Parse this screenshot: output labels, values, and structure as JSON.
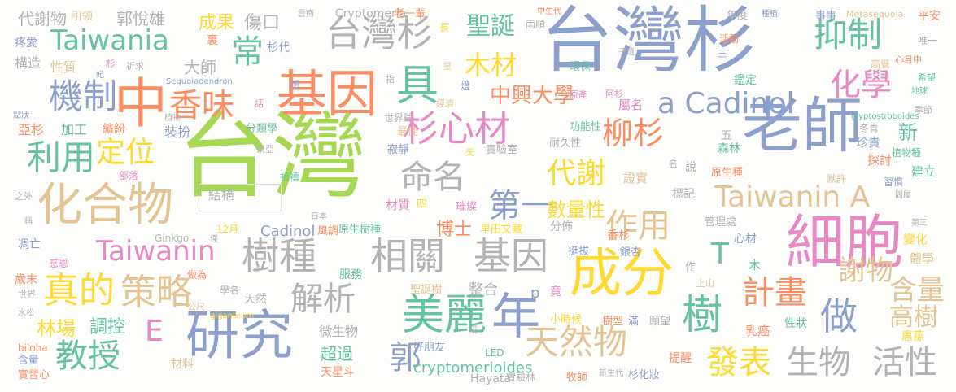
{
  "palette": {
    "green": "#a6d854",
    "blue": "#8da0cb",
    "orange": "#fc8d62",
    "teal": "#66c2a5",
    "pink": "#e78ac3",
    "yellow": "#ffd92f",
    "tan": "#e5c494",
    "gray": "#b3b3b3"
  },
  "words": [
    {
      "text": "台灣",
      "color": "#a6d854"
    },
    {
      "text": "台灣杉",
      "color": "#8da0cb"
    },
    {
      "text": "老師",
      "color": "#8da0cb"
    },
    {
      "text": "基因",
      "color": "#fc8d62"
    },
    {
      "text": "中",
      "color": "#fc8d62"
    },
    {
      "text": "細胞",
      "color": "#e78ac3"
    },
    {
      "text": "成分",
      "color": "#ffd92f"
    },
    {
      "text": "研究",
      "color": "#8da0cb"
    },
    {
      "text": "化合物",
      "color": "#e5c494"
    },
    {
      "text": "Taiwania",
      "color": "#66c2a5"
    },
    {
      "text": "台灣杉",
      "color": "#b3b3b3"
    },
    {
      "text": "a Cadinol",
      "color": "#8da0cb"
    },
    {
      "text": "Taiwanin A",
      "color": "#e5c494"
    },
    {
      "text": "Taiwanin",
      "color": "#e78ac3"
    },
    {
      "text": "樹種",
      "color": "#b3b3b3"
    },
    {
      "text": "相關",
      "color": "#b3b3b3"
    },
    {
      "text": "基因",
      "color": "#b3b3b3"
    },
    {
      "text": "年",
      "color": "#8da0cb"
    },
    {
      "text": "美麗",
      "color": "#66c2a5"
    },
    {
      "text": "杉心材",
      "color": "#e78ac3"
    },
    {
      "text": "具",
      "color": "#66c2a5"
    },
    {
      "text": "常",
      "color": "#66c2a5"
    },
    {
      "text": "抑制",
      "color": "#66c2a5"
    },
    {
      "text": "化學",
      "color": "#e78ac3"
    },
    {
      "text": "機制",
      "color": "#8da0cb"
    },
    {
      "text": "香味",
      "color": "#fc8d62"
    },
    {
      "text": "利用",
      "color": "#66c2a5"
    },
    {
      "text": "定位",
      "color": "#ffd92f"
    },
    {
      "text": "代謝",
      "color": "#ffd92f"
    },
    {
      "text": "柳杉",
      "color": "#fc8d62"
    },
    {
      "text": "命名",
      "color": "#b3b3b3"
    },
    {
      "text": "第一",
      "color": "#8da0cb"
    },
    {
      "text": "作用",
      "color": "#e5c494"
    },
    {
      "text": "策略",
      "color": "#e5c494"
    },
    {
      "text": "真的",
      "color": "#ffd92f"
    },
    {
      "text": "解析",
      "color": "#b3b3b3"
    },
    {
      "text": "教授",
      "color": "#66c2a5"
    },
    {
      "text": "天然物",
      "color": "#e5c494"
    },
    {
      "text": "郭",
      "color": "#8da0cb"
    },
    {
      "text": "發表",
      "color": "#ffd92f"
    },
    {
      "text": "生物",
      "color": "#b3b3b3"
    },
    {
      "text": "活性",
      "color": "#b3b3b3"
    },
    {
      "text": "做",
      "color": "#8da0cb"
    },
    {
      "text": "樹",
      "color": "#66c2a5"
    },
    {
      "text": "計畫",
      "color": "#fc8d62"
    },
    {
      "text": "謝物",
      "color": "#e5c494"
    },
    {
      "text": "含量",
      "color": "#e5c494"
    },
    {
      "text": "高樹",
      "color": "#e5c494"
    },
    {
      "text": "T",
      "color": "#66c2a5"
    },
    {
      "text": "E",
      "color": "#e78ac3"
    },
    {
      "text": "木材",
      "color": "#ffd92f"
    },
    {
      "text": "聖誕",
      "color": "#66c2a5"
    },
    {
      "text": "中興大學",
      "color": "#fc8d62"
    },
    {
      "text": "郭悅雄",
      "color": "#b3b3b3"
    },
    {
      "text": "代謝物",
      "color": "#b3b3b3"
    },
    {
      "text": "成果",
      "color": "#ffd92f"
    },
    {
      "text": "傷口",
      "color": "#b3b3b3"
    },
    {
      "text": "林場",
      "color": "#ffd92f"
    },
    {
      "text": "調控",
      "color": "#66c2a5"
    },
    {
      "text": "數量性",
      "color": "#ffd92f"
    },
    {
      "text": "博士",
      "color": "#fc8d62"
    },
    {
      "text": "cryptomerioides",
      "color": "#66c2a5"
    },
    {
      "text": "Cadinol",
      "color": "#8da0cb"
    },
    {
      "text": "Cryptomeria",
      "color": "#b3b3b3"
    },
    {
      "text": "Hayata",
      "color": "#b3b3b3"
    },
    {
      "text": "Ginkgo",
      "color": "#b3b3b3"
    },
    {
      "text": "Metasequoia",
      "color": "#e5c494"
    },
    {
      "text": "Sequoiadendron",
      "color": "#8da0cb"
    },
    {
      "text": "glyptostroboides",
      "color": "#66c2a5"
    },
    {
      "text": "giganteum",
      "color": "#ffd92f"
    },
    {
      "text": "biloba",
      "color": "#fc8d62"
    },
    {
      "text": "LED",
      "color": "#66c2a5"
    },
    {
      "text": "12月",
      "color": "#ffd92f"
    },
    {
      "text": "疼愛",
      "color": "#8da0cb"
    },
    {
      "text": "構造",
      "color": "#b3b3b3"
    },
    {
      "text": "性質",
      "color": "#e5c494"
    },
    {
      "text": "亞杉",
      "color": "#fc8d62"
    },
    {
      "text": "加工",
      "color": "#66c2a5"
    },
    {
      "text": "繽紛",
      "color": "#fc8d62"
    },
    {
      "text": "裝扮",
      "color": "#8da0cb"
    },
    {
      "text": "分類學",
      "color": "#66c2a5"
    },
    {
      "text": "結構",
      "color": "#b3b3b3"
    },
    {
      "text": "部落",
      "color": "#e78ac3"
    },
    {
      "text": "祈禱",
      "color": "#66c2a5"
    },
    {
      "text": "大師",
      "color": "#b3b3b3"
    },
    {
      "text": "杉代",
      "color": "#8da0cb"
    },
    {
      "text": "引領",
      "color": "#e5c494"
    },
    {
      "text": "老一輩",
      "color": "#fc8d62"
    },
    {
      "text": "長",
      "color": "#ffd92f"
    },
    {
      "text": "雨順",
      "color": "#b3b3b3"
    },
    {
      "text": "年度",
      "color": "#b3b3b3"
    },
    {
      "text": "事事",
      "color": "#8da0cb"
    },
    {
      "text": "平安",
      "color": "#fc8d62"
    },
    {
      "text": "唯一",
      "color": "#b3b3b3"
    },
    {
      "text": "高聳",
      "color": "#e5c494"
    },
    {
      "text": "心目中",
      "color": "#fc8d62"
    },
    {
      "text": "希望",
      "color": "#66c2a5"
    },
    {
      "text": "鑑定",
      "color": "#66c2a5"
    },
    {
      "text": "環保",
      "color": "#66c2a5"
    },
    {
      "text": "活動",
      "color": "#fc8d62"
    },
    {
      "text": "三",
      "color": "#8da0cb"
    },
    {
      "text": "祈求",
      "color": "#b3b3b3"
    },
    {
      "text": "屬名",
      "color": "#e78ac3"
    },
    {
      "text": "阿杉",
      "color": "#e78ac3"
    },
    {
      "text": "原產",
      "color": "#e78ac3"
    },
    {
      "text": "實驗室",
      "color": "#b3b3b3"
    },
    {
      "text": "功能性",
      "color": "#66c2a5"
    },
    {
      "text": "耐久性",
      "color": "#b3b3b3"
    },
    {
      "text": "最佳",
      "color": "#e5c494"
    },
    {
      "text": "世界爺",
      "color": "#b3b3b3"
    },
    {
      "text": "經濟",
      "color": "#e5c494"
    },
    {
      "text": "寂靜",
      "color": "#8da0cb"
    },
    {
      "text": "天",
      "color": "#ffd92f"
    },
    {
      "text": "燈",
      "color": "#8da0cb"
    },
    {
      "text": "想",
      "color": "#8da0cb"
    },
    {
      "text": "指",
      "color": "#b3b3b3"
    },
    {
      "text": "話",
      "color": "#e78ac3"
    },
    {
      "text": "植物",
      "color": "#b3b3b3"
    },
    {
      "text": "東亞",
      "color": "#b3b3b3"
    },
    {
      "text": "新",
      "color": "#66c2a5"
    },
    {
      "text": "珍貴",
      "color": "#8da0cb"
    },
    {
      "text": "冬青",
      "color": "#b3b3b3"
    },
    {
      "text": "植物種",
      "color": "#66c2a5"
    },
    {
      "text": "季節",
      "color": "#b3b3b3"
    },
    {
      "text": "森林",
      "color": "#66c2a5"
    },
    {
      "text": "五",
      "color": "#b3b3b3"
    },
    {
      "text": "探討",
      "color": "#fc8d62"
    },
    {
      "text": "建立",
      "color": "#66c2a5"
    },
    {
      "text": "習慣",
      "color": "#8da0cb"
    },
    {
      "text": "原生種",
      "color": "#fc8d62"
    },
    {
      "text": "默許",
      "color": "#e5c494"
    },
    {
      "text": "說",
      "color": "#b3b3b3"
    },
    {
      "text": "名",
      "color": "#b3b3b3"
    },
    {
      "text": "證實",
      "color": "#e5c494"
    },
    {
      "text": "標記",
      "color": "#b3b3b3"
    },
    {
      "text": "分佈",
      "color": "#b3b3b3"
    },
    {
      "text": "香杉",
      "color": "#fc8d62"
    },
    {
      "text": "心材",
      "color": "#8da0cb"
    },
    {
      "text": "管理處",
      "color": "#b3b3b3"
    },
    {
      "text": "木",
      "color": "#66c2a5"
    },
    {
      "text": "作",
      "color": "#b3b3b3"
    },
    {
      "text": "變化",
      "color": "#ffd92f"
    },
    {
      "text": "體學",
      "color": "#e5c494"
    },
    {
      "text": "原生樹種",
      "color": "#66c2a5"
    },
    {
      "text": "早田文藏",
      "color": "#ffd92f"
    },
    {
      "text": "材質",
      "color": "#e78ac3"
    },
    {
      "text": "四",
      "color": "#ffd92f"
    },
    {
      "text": "璀燦",
      "color": "#e78ac3"
    },
    {
      "text": "風調",
      "color": "#fc8d62"
    },
    {
      "text": "服務",
      "color": "#66c2a5"
    },
    {
      "text": "挺拔",
      "color": "#8da0cb"
    },
    {
      "text": "銀杏",
      "color": "#8da0cb"
    },
    {
      "text": "整合",
      "color": "#b3b3b3"
    },
    {
      "text": "p",
      "color": "#8da0cb"
    },
    {
      "text": "竟",
      "color": "#e78ac3"
    },
    {
      "text": "上山",
      "color": "#e5c494"
    },
    {
      "text": "聖誕樹",
      "color": "#e5c494"
    },
    {
      "text": "小時候",
      "color": "#ffd92f"
    },
    {
      "text": "樹型",
      "color": "#fc8d62"
    },
    {
      "text": "滿",
      "color": "#8da0cb"
    },
    {
      "text": "願望",
      "color": "#b3b3b3"
    },
    {
      "text": "乳癌",
      "color": "#fc8d62"
    },
    {
      "text": "性狀",
      "color": "#66c2a5"
    },
    {
      "text": "惠蓀",
      "color": "#ffd92f"
    },
    {
      "text": "微生物",
      "color": "#b3b3b3"
    },
    {
      "text": "超過",
      "color": "#66c2a5"
    },
    {
      "text": "成",
      "color": "#b3b3b3"
    },
    {
      "text": "好朋友",
      "color": "#8da0cb"
    },
    {
      "text": "天星斗",
      "color": "#fc8d62"
    },
    {
      "text": "實驗林",
      "color": "#b3b3b3"
    },
    {
      "text": "牧師",
      "color": "#fc8d62"
    },
    {
      "text": "新生代",
      "color": "#b3b3b3"
    },
    {
      "text": "杉化妝",
      "color": "#8da0cb"
    },
    {
      "text": "提醒",
      "color": "#fc8d62"
    },
    {
      "text": "材料",
      "color": "#e5c494"
    },
    {
      "text": "含量",
      "color": "#8da0cb"
    },
    {
      "text": "實習心",
      "color": "#fc8d62"
    },
    {
      "text": "歲末",
      "color": "#fc8d62"
    },
    {
      "text": "凋亡",
      "color": "#8da0cb"
    },
    {
      "text": "感恩",
      "color": "#e78ac3"
    },
    {
      "text": "世界",
      "color": "#b3b3b3"
    },
    {
      "text": "學名",
      "color": "#b3b3b3"
    },
    {
      "text": "天然",
      "color": "#b3b3b3"
    },
    {
      "text": "公尺",
      "color": "#e5c494"
    },
    {
      "text": "做為",
      "color": "#fc8d62"
    },
    {
      "text": "點狀",
      "color": "#8da0cb"
    },
    {
      "text": "之外",
      "color": "#b3b3b3"
    },
    {
      "text": "日本",
      "color": "#b3b3b3"
    },
    {
      "text": "雲南",
      "color": "#b3b3b3"
    },
    {
      "text": "中生代",
      "color": "#fc8d62"
    },
    {
      "text": "種植",
      "color": "#8da0cb"
    },
    {
      "text": "星",
      "color": "#e5c494"
    },
    {
      "text": "地球",
      "color": "#66c2a5"
    },
    {
      "text": "杉",
      "color": "#e78ac3"
    },
    {
      "text": "裏",
      "color": "#fc8d62"
    },
    {
      "text": "紀",
      "color": "#8da0cb"
    },
    {
      "text": "子遺",
      "color": "#b3b3b3"
    },
    {
      "text": "水松",
      "color": "#b3b3b3"
    },
    {
      "text": "稱",
      "color": "#b3b3b3"
    },
    {
      "text": "第三",
      "color": "#b3b3b3"
    },
    {
      "text": "問屬",
      "color": "#b3b3b3"
    },
    {
      "text": "僅",
      "color": "#b3b3b3"
    }
  ]
}
